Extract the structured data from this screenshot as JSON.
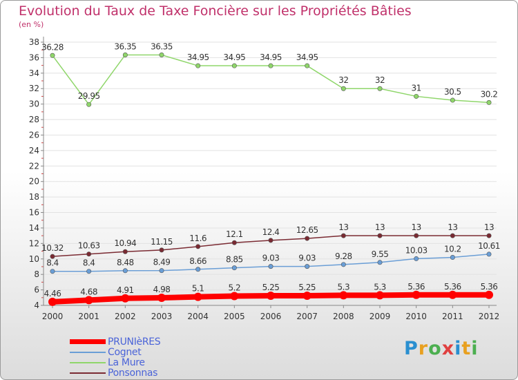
{
  "chart_data": {
    "type": "line",
    "title": "Evolution du Taux de Taxe Foncière sur les Propriétés Bâties",
    "ylabel": "(en %)",
    "ylim": [
      4,
      38
    ],
    "yticks": [
      "4",
      "6",
      "8",
      "10",
      "12",
      "14",
      "16",
      "18",
      "20",
      "22",
      "24",
      "26",
      "28",
      "30",
      "32",
      "34",
      "36",
      "38"
    ],
    "categories": [
      "2000",
      "2001",
      "2002",
      "2003",
      "2004",
      "2005",
      "2006",
      "2007",
      "2008",
      "2009",
      "2010",
      "2011",
      "2012"
    ],
    "series": [
      {
        "name": "PRUNIèRES",
        "color": "#ff0000",
        "values": [
          4.46,
          4.68,
          4.91,
          4.98,
          5.1,
          5.2,
          5.25,
          5.25,
          5.3,
          5.3,
          5.36,
          5.36,
          5.36
        ],
        "labels": [
          "4.46",
          "4.68",
          "4.91",
          "4.98",
          "5.1",
          "5.2",
          "5.25",
          "5.25",
          "5.3",
          "5.3",
          "5.36",
          "5.36",
          "5.36"
        ]
      },
      {
        "name": "Cognet",
        "color": "#6a9ed6",
        "values": [
          8.4,
          8.4,
          8.48,
          8.49,
          8.66,
          8.85,
          9.03,
          9.03,
          9.28,
          9.55,
          10.03,
          10.2,
          10.61
        ],
        "labels": [
          "8.4",
          "8.4",
          "8.48",
          "8.49",
          "8.66",
          "8.85",
          "9.03",
          "9.03",
          "9.28",
          "9.55",
          "10.03",
          "10.2",
          "10.61"
        ]
      },
      {
        "name": "La Mure",
        "color": "#8fd66a",
        "values": [
          36.28,
          29.95,
          36.35,
          36.35,
          34.95,
          34.95,
          34.95,
          34.95,
          32,
          32,
          31,
          30.5,
          30.2
        ],
        "labels": [
          "36.28",
          "29.95",
          "36.35",
          "36.35",
          "34.95",
          "34.95",
          "34.95",
          "34.95",
          "32",
          "32",
          "31",
          "30.5",
          "30.2"
        ]
      },
      {
        "name": "Ponsonnas",
        "color": "#7a2a32",
        "values": [
          10.32,
          10.63,
          10.94,
          11.15,
          11.6,
          12.1,
          12.4,
          12.65,
          13,
          13,
          13,
          13,
          13
        ],
        "labels": [
          "10.32",
          "10.63",
          "10.94",
          "11.15",
          "11.6",
          "12.1",
          "12.4",
          "12.65",
          "13",
          "13",
          "13",
          "13",
          "13"
        ]
      }
    ],
    "legend_position": "bottom-left"
  },
  "logo": {
    "letters": [
      "P",
      "r",
      "o",
      "x",
      "i",
      "t",
      "i"
    ],
    "colors": [
      "#2a8fd0",
      "#e8a020",
      "#4caf50",
      "#e04040",
      "#2a8fd0",
      "#e8a020",
      "#4caf50"
    ]
  }
}
